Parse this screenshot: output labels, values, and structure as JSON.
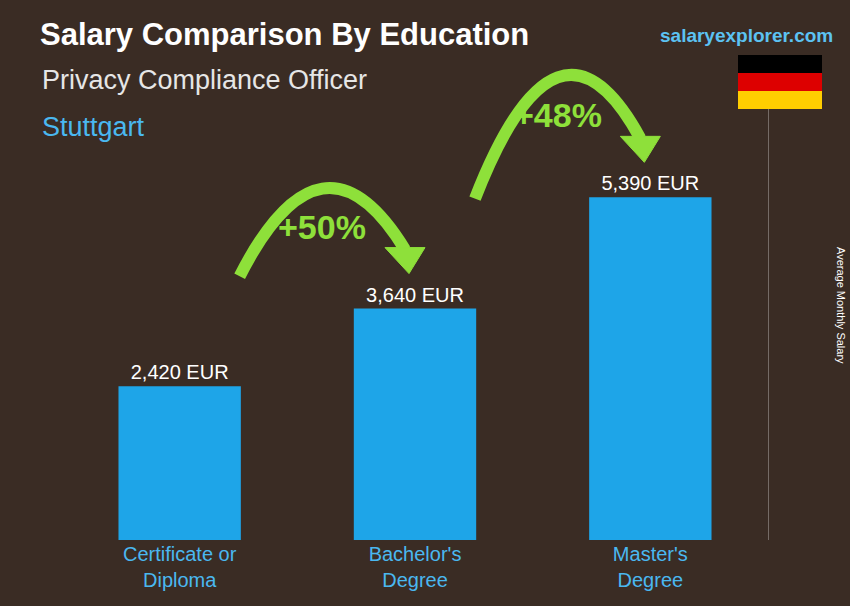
{
  "chart_data": {
    "type": "bar",
    "title": "Salary Comparison By Education",
    "subtitle": "Privacy Compliance Officer",
    "location": "Stuttgart",
    "source": "salaryexplorer.com",
    "y_label": "Average Monthly Salary",
    "categories": [
      "Certificate or Diploma",
      "Bachelor's Degree",
      "Master's Degree"
    ],
    "values": [
      2420,
      3640,
      5390
    ],
    "value_labels": [
      "2,420 EUR",
      "3,640 EUR",
      "5,390 EUR"
    ],
    "color": "#1ea5e8",
    "ylim": [
      0,
      7000
    ],
    "grid": false,
    "data_labels": true,
    "tick_labels": "x",
    "annotations": [
      {
        "text": "+50%",
        "from": "Certificate or Diploma",
        "to": "Bachelor's Degree"
      },
      {
        "text": "+48%",
        "from": "Bachelor's Degree",
        "to": "Master's Degree"
      }
    ]
  }
}
